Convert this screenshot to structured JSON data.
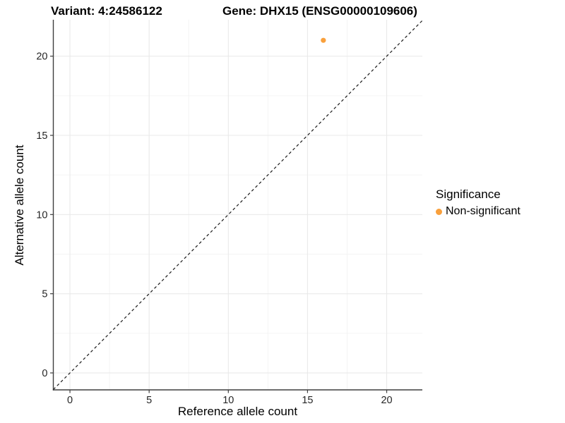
{
  "figure": {
    "variant_title": "Variant: 4:24586122",
    "gene_title": "Gene: DHX15 (ENSG00000109606)"
  },
  "chart_data": {
    "type": "scatter",
    "title": "Variant: 4:24586122 — Gene: DHX15 (ENSG00000109606)",
    "xlabel": "Reference allele count",
    "ylabel": "Alternative allele count",
    "x_ticks": [
      0,
      5,
      10,
      15,
      20
    ],
    "y_ticks": [
      0,
      5,
      10,
      15,
      20
    ],
    "minor_tick_step": 2.5,
    "xlim": [
      -1.05,
      22.25
    ],
    "ylim": [
      -1.07,
      22.3
    ],
    "grid": true,
    "reference_line": {
      "slope": 1,
      "intercept": 0,
      "style": "dashed",
      "color": "#1a1a1a"
    },
    "series": [
      {
        "name": "Non-significant",
        "color": "#F9A03C",
        "points": [
          {
            "x": 16,
            "y": 21
          }
        ]
      }
    ],
    "legend": {
      "title": "Significance",
      "position": "right",
      "items": [
        {
          "label": "Non-significant",
          "color": "#F9A03C"
        }
      ]
    },
    "colors": {
      "grid_major": "#E9E9E9",
      "grid_minor": "#F3F3F3",
      "axis_line": "#3F3F3F",
      "tick_mark": "#3F3F3F",
      "tick_label": "#262626"
    }
  }
}
